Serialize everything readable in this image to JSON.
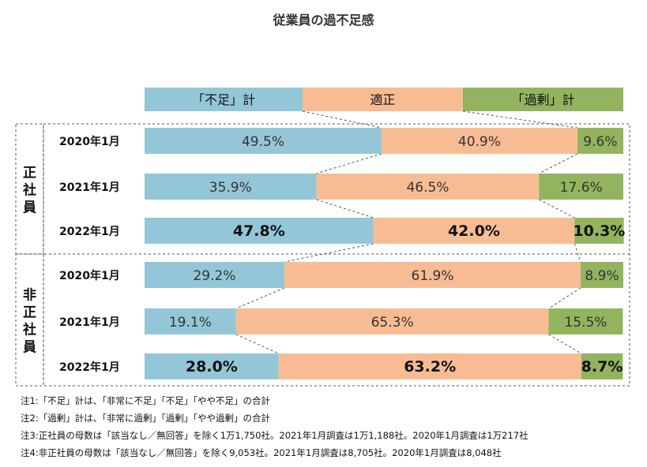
{
  "chart_data": {
    "type": "bar",
    "stacked": "100%",
    "title": "従業員の過不足感",
    "series": [
      {
        "name": "「不足」計",
        "color": "#93c7d8"
      },
      {
        "name": "適正",
        "color": "#f8bc94"
      },
      {
        "name": "「過剰」計",
        "color": "#92b45e"
      }
    ],
    "groups": [
      {
        "label": "正社員",
        "rows": [
          {
            "year": "2020年1月",
            "values": [
              49.5,
              40.9,
              9.6
            ],
            "labels": [
              "49.5%",
              "40.9%",
              "9.6%"
            ],
            "bold": false
          },
          {
            "year": "2021年1月",
            "values": [
              35.9,
              46.5,
              17.6
            ],
            "labels": [
              "35.9%",
              "46.5%",
              "17.6%"
            ],
            "bold": false
          },
          {
            "year": "2022年1月",
            "values": [
              47.8,
              42.0,
              10.3
            ],
            "labels": [
              "47.8%",
              "42.0%",
              "10.3%"
            ],
            "bold": true
          }
        ]
      },
      {
        "label": "非正社員",
        "rows": [
          {
            "year": "2020年1月",
            "values": [
              29.2,
              61.9,
              8.9
            ],
            "labels": [
              "29.2%",
              "61.9%",
              "8.9%"
            ],
            "bold": false
          },
          {
            "year": "2021年1月",
            "values": [
              19.1,
              65.3,
              15.5
            ],
            "labels": [
              "19.1%",
              "65.3%",
              "15.5%"
            ],
            "bold": false
          },
          {
            "year": "2022年1月",
            "values": [
              28.0,
              63.2,
              8.7
            ],
            "labels": [
              "28.0%",
              "63.2%",
              "8.7%"
            ],
            "bold": true
          }
        ]
      }
    ]
  },
  "notes": [
    "注1:「不足」計は、「非常に不足」「不足」「やや不足」の合計",
    "注2:「過剰」計は、「非常に過剰」「過剰」「やや過剰」の合計",
    "注3:正社員の母数は「該当なし／無回答」を除く1万1,750社。2021年1月調査は1万1,188社。2020年1月調査は1万217社",
    "注4:非正社員の母数は「該当なし／無回答」を除く9,053社。2021年1月調査は8,705社。2020年1月調査は8,048社"
  ]
}
